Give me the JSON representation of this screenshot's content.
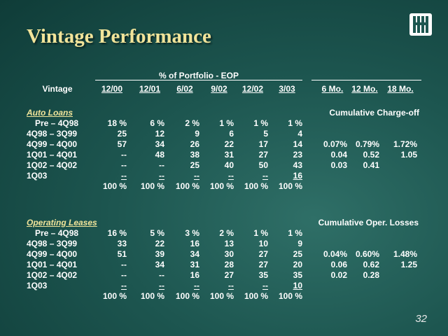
{
  "title": "Vintage Performance",
  "page_number": "32",
  "header": {
    "group_portfolio": "% of Portfolio - EOP",
    "vintage_label": "Vintage",
    "period_cols": [
      "12/00",
      "12/01",
      "6/02",
      "9/02",
      "12/02",
      "3/03"
    ],
    "mo_cols": [
      "6 Mo.",
      "12 Mo.",
      "18 Mo."
    ]
  },
  "auto": {
    "label": "Auto Loans",
    "metric_label": "Cumulative Charge-off",
    "rows": [
      {
        "vintage": "Pre – 4Q98",
        "vals": [
          "18 %",
          "6 %",
          "2 %",
          "1 %",
          "1 %",
          "1 %"
        ],
        "mo": [
          "",
          "",
          ""
        ]
      },
      {
        "vintage": "4Q98 – 3Q99",
        "vals": [
          "25",
          "12",
          "9",
          "6",
          "5",
          "4"
        ],
        "mo": [
          "",
          "",
          ""
        ]
      },
      {
        "vintage": "4Q99 – 4Q00",
        "vals": [
          "57",
          "34",
          "26",
          "22",
          "17",
          "14"
        ],
        "mo": [
          "0.07%",
          "0.79%",
          "1.72%"
        ]
      },
      {
        "vintage": "1Q01 – 4Q01",
        "vals": [
          "--",
          "48",
          "38",
          "31",
          "27",
          "23"
        ],
        "mo": [
          "0.04",
          "0.52",
          "1.05"
        ]
      },
      {
        "vintage": "1Q02 – 4Q02",
        "vals": [
          "--",
          "--",
          "25",
          "40",
          "50",
          "43"
        ],
        "mo": [
          "0.03",
          "0.41",
          ""
        ]
      },
      {
        "vintage": "1Q03",
        "vals": [
          "--",
          "--",
          "--",
          "--",
          "--",
          "16"
        ],
        "mo": [
          "",
          "",
          ""
        ]
      }
    ],
    "totals": [
      "100 %",
      "100 %",
      "100 %",
      "100 %",
      "100 %",
      "100 %"
    ]
  },
  "leases": {
    "label": "Operating Leases",
    "metric_label": "Cumulative Oper. Losses",
    "rows": [
      {
        "vintage": "Pre – 4Q98",
        "vals": [
          "16 %",
          "5 %",
          "3 %",
          "2 %",
          "1 %",
          "1 %"
        ],
        "mo": [
          "",
          "",
          ""
        ]
      },
      {
        "vintage": "4Q98 – 3Q99",
        "vals": [
          "33",
          "22",
          "16",
          "13",
          "10",
          "9"
        ],
        "mo": [
          "",
          "",
          ""
        ]
      },
      {
        "vintage": "4Q99 – 4Q00",
        "vals": [
          "51",
          "39",
          "34",
          "30",
          "27",
          "25"
        ],
        "mo": [
          "0.04%",
          "0.60%",
          "1.48%"
        ]
      },
      {
        "vintage": "1Q01 – 4Q01",
        "vals": [
          "--",
          "34",
          "31",
          "28",
          "27",
          "20"
        ],
        "mo": [
          "0.06",
          "0.62",
          "1.25"
        ]
      },
      {
        "vintage": "1Q02 – 4Q02",
        "vals": [
          "--",
          "--",
          "16",
          "27",
          "35",
          "35"
        ],
        "mo": [
          "0.02",
          "0.28",
          ""
        ]
      },
      {
        "vintage": "1Q03",
        "vals": [
          "--",
          "--",
          "--",
          "--",
          "--",
          "10"
        ],
        "mo": [
          "",
          "",
          ""
        ]
      }
    ],
    "totals": [
      "100 %",
      "100 %",
      "100 %",
      "100 %",
      "100 %",
      "100 %"
    ]
  }
}
